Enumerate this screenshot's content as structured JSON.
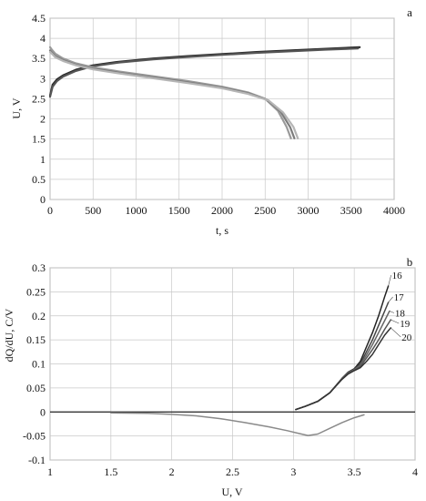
{
  "chart_data": [
    {
      "panel": "a",
      "type": "line",
      "xlabel": "t, s",
      "ylabel": "U, V",
      "xlim": [
        0,
        4000
      ],
      "ylim": [
        0,
        4.5
      ],
      "xticks": [
        0,
        500,
        1000,
        1500,
        2000,
        2500,
        3000,
        3500,
        4000
      ],
      "yticks": [
        0,
        0.5,
        1,
        1.5,
        2,
        2.5,
        3,
        3.5,
        4,
        4.5
      ],
      "grid": true,
      "legend": "none",
      "series": [
        {
          "role": "charge",
          "color": "#2a2a2a",
          "x": [
            0,
            30,
            80,
            150,
            300,
            500,
            800,
            1200,
            1600,
            2000,
            2400,
            2800,
            3200,
            3600
          ],
          "y": [
            2.58,
            2.85,
            2.98,
            3.08,
            3.22,
            3.33,
            3.42,
            3.5,
            3.56,
            3.61,
            3.66,
            3.7,
            3.74,
            3.78
          ]
        },
        {
          "role": "charge",
          "color": "#555555",
          "x": [
            0,
            30,
            80,
            150,
            300,
            500,
            800,
            1200,
            1600,
            2000,
            2400,
            2800,
            3200,
            3580
          ],
          "y": [
            2.55,
            2.8,
            2.94,
            3.05,
            3.19,
            3.31,
            3.4,
            3.48,
            3.54,
            3.59,
            3.64,
            3.68,
            3.72,
            3.75
          ]
        },
        {
          "role": "discharge",
          "color": "#9a9a9a",
          "x": [
            0,
            20,
            60,
            150,
            300,
            500,
            800,
            1200,
            1600,
            2000,
            2300,
            2500,
            2650,
            2750,
            2800
          ],
          "y": [
            3.78,
            3.72,
            3.62,
            3.5,
            3.38,
            3.28,
            3.18,
            3.06,
            2.94,
            2.8,
            2.66,
            2.5,
            2.2,
            1.8,
            1.52
          ]
        },
        {
          "role": "discharge",
          "color": "#7d7d7d",
          "x": [
            0,
            20,
            60,
            150,
            300,
            500,
            800,
            1200,
            1600,
            2000,
            2300,
            2520,
            2680,
            2790,
            2840
          ],
          "y": [
            3.7,
            3.65,
            3.56,
            3.46,
            3.35,
            3.25,
            3.15,
            3.03,
            2.91,
            2.78,
            2.64,
            2.48,
            2.18,
            1.8,
            1.52
          ]
        },
        {
          "role": "discharge",
          "color": "#b5b5b5",
          "x": [
            0,
            20,
            60,
            150,
            300,
            500,
            800,
            1200,
            1600,
            2000,
            2300,
            2540,
            2710,
            2830,
            2880
          ],
          "y": [
            3.66,
            3.62,
            3.53,
            3.44,
            3.33,
            3.23,
            3.13,
            3.01,
            2.89,
            2.76,
            2.62,
            2.46,
            2.16,
            1.8,
            1.52
          ]
        }
      ]
    },
    {
      "panel": "b",
      "type": "line",
      "xlabel": "U, V",
      "ylabel": "dQ/dU, C/V",
      "xlim": [
        1,
        4
      ],
      "ylim": [
        -0.1,
        0.3
      ],
      "xticks": [
        1,
        1.5,
        2,
        2.5,
        3,
        3.5,
        4
      ],
      "yticks": [
        -0.1,
        -0.05,
        0,
        0.05,
        0.1,
        0.15,
        0.2,
        0.25,
        0.3
      ],
      "grid": true,
      "legend": "none",
      "series": [
        {
          "name": "16",
          "color": "#222222",
          "x": [
            3.02,
            3.1,
            3.2,
            3.3,
            3.4,
            3.45,
            3.5,
            3.55,
            3.6,
            3.65,
            3.7,
            3.75,
            3.78
          ],
          "y": [
            0.005,
            0.012,
            0.022,
            0.04,
            0.07,
            0.083,
            0.09,
            0.105,
            0.135,
            0.165,
            0.2,
            0.24,
            0.262
          ]
        },
        {
          "name": "17",
          "color": "#444444",
          "x": [
            3.02,
            3.1,
            3.2,
            3.3,
            3.4,
            3.45,
            3.5,
            3.55,
            3.6,
            3.65,
            3.7,
            3.75,
            3.78
          ],
          "y": [
            0.005,
            0.012,
            0.022,
            0.04,
            0.07,
            0.082,
            0.089,
            0.1,
            0.125,
            0.15,
            0.18,
            0.21,
            0.228
          ]
        },
        {
          "name": "18",
          "color": "#666666",
          "x": [
            3.02,
            3.1,
            3.2,
            3.3,
            3.4,
            3.45,
            3.5,
            3.55,
            3.6,
            3.65,
            3.7,
            3.75,
            3.79
          ],
          "y": [
            0.005,
            0.012,
            0.022,
            0.04,
            0.069,
            0.081,
            0.088,
            0.097,
            0.118,
            0.14,
            0.165,
            0.19,
            0.21
          ]
        },
        {
          "name": "19",
          "color": "#555555",
          "x": [
            3.02,
            3.1,
            3.2,
            3.3,
            3.4,
            3.45,
            3.5,
            3.55,
            3.6,
            3.65,
            3.7,
            3.75,
            3.8
          ],
          "y": [
            0.005,
            0.012,
            0.022,
            0.04,
            0.069,
            0.08,
            0.087,
            0.094,
            0.112,
            0.13,
            0.15,
            0.172,
            0.192
          ]
        },
        {
          "name": "20",
          "color": "#333333",
          "x": [
            3.02,
            3.1,
            3.2,
            3.3,
            3.4,
            3.45,
            3.5,
            3.55,
            3.6,
            3.65,
            3.7,
            3.75,
            3.8
          ],
          "y": [
            0.005,
            0.012,
            0.022,
            0.04,
            0.068,
            0.079,
            0.086,
            0.092,
            0.105,
            0.12,
            0.14,
            0.16,
            0.175
          ]
        },
        {
          "role": "reduction",
          "color": "#8a8a8a",
          "x": [
            1.5,
            1.8,
            2.0,
            2.2,
            2.4,
            2.6,
            2.8,
            2.95,
            3.05,
            3.12,
            3.2,
            3.3,
            3.4,
            3.5,
            3.58
          ],
          "y": [
            -0.002,
            -0.003,
            -0.005,
            -0.008,
            -0.014,
            -0.022,
            -0.031,
            -0.039,
            -0.045,
            -0.049,
            -0.046,
            -0.034,
            -0.022,
            -0.012,
            -0.006
          ]
        }
      ],
      "series_labels": [
        "16",
        "17",
        "18",
        "19",
        "20"
      ]
    }
  ],
  "panels": {
    "a": "a",
    "b": "b"
  }
}
